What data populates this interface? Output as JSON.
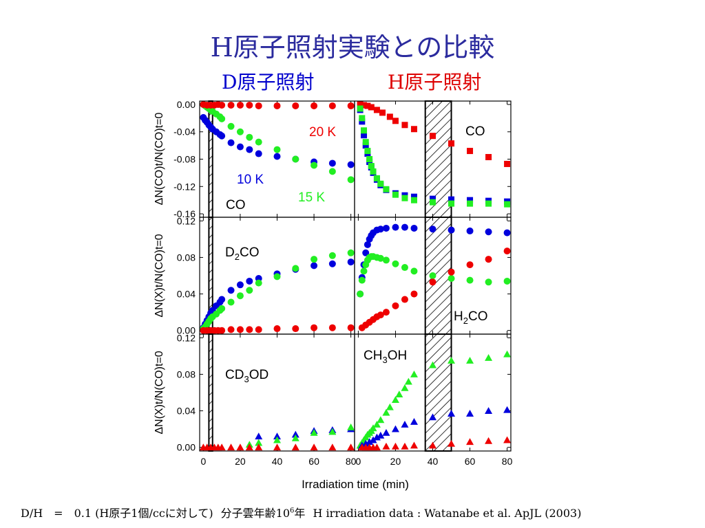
{
  "slide": {
    "title": "H原子照射実験との比較",
    "subtitle_left": "D原子照射",
    "subtitle_right": "H原子照射",
    "footer": {
      "ratio": "D/H　=　0.1 (H原子1個/ccに対して)",
      "age_prefix": "分子雲年齢10",
      "age_sup": "6",
      "age_suffix": "年",
      "source": "H irradiation data : Watanabe et al. ApJL (2003)"
    }
  },
  "colors": {
    "d10K": "#0000dd",
    "d15K": "#22ee22",
    "d20K": "#ee0000",
    "title": "#2b2b9e"
  },
  "chart_data": {
    "type": "scatter",
    "xlabel": "Irradiation time (min)",
    "xlim": [
      -2,
      82
    ],
    "xticks": [
      0,
      20,
      40,
      60,
      80
    ],
    "hatched_interval": [
      36,
      50
    ],
    "left_hatched_interval": [
      3,
      5
    ],
    "panels": [
      {
        "id": "d-co",
        "label": "CO",
        "ylabel": "ΔN(CO)t/N(CO)t=0",
        "ylim": [
          -0.165,
          0.005
        ],
        "yticks": [
          "0.00",
          "-0.04",
          "-0.08",
          "-0.12",
          "-0.16"
        ],
        "ytick_values": [
          0,
          -0.04,
          -0.08,
          -0.12,
          -0.16
        ],
        "marker": "circle",
        "temp_labels": [
          "10 K",
          "15 K",
          "20 K"
        ],
        "series": [
          {
            "name": "10 K",
            "x": [
              0,
              1,
              2,
              3,
              4,
              5,
              7,
              9,
              10,
              15,
              20,
              25,
              30,
              40,
              50,
              60,
              70,
              80
            ],
            "y": [
              -0.019,
              -0.023,
              -0.026,
              -0.03,
              -0.033,
              -0.036,
              -0.04,
              -0.044,
              -0.046,
              -0.056,
              -0.062,
              -0.066,
              -0.072,
              -0.076,
              -0.08,
              -0.084,
              -0.086,
              -0.088
            ]
          },
          {
            "name": "15 K",
            "x": [
              0,
              1,
              2,
              3,
              4,
              5,
              7,
              9,
              10,
              15,
              20,
              25,
              30,
              40,
              50,
              60,
              70,
              80
            ],
            "y": [
              0.0,
              -0.002,
              -0.004,
              -0.006,
              -0.008,
              -0.01,
              -0.014,
              -0.018,
              -0.021,
              -0.032,
              -0.04,
              -0.048,
              -0.055,
              -0.066,
              -0.08,
              -0.089,
              -0.098,
              -0.11
            ]
          },
          {
            "name": "20 K",
            "x": [
              0,
              2,
              4,
              6,
              8,
              10,
              15,
              20,
              25,
              30,
              40,
              50,
              60,
              70,
              80
            ],
            "y": [
              0.0,
              -0.001,
              -0.001,
              -0.001,
              0.0,
              -0.001,
              -0.001,
              -0.001,
              -0.001,
              -0.002,
              -0.002,
              -0.002,
              -0.002,
              -0.002,
              -0.002
            ]
          }
        ]
      },
      {
        "id": "h-co",
        "label": "CO",
        "marker": "square",
        "series": [
          {
            "name": "20 K",
            "x": [
              1,
              3,
              5,
              7,
              10,
              13,
              17,
              20,
              25,
              30,
              40,
              50,
              60,
              70,
              80
            ],
            "y": [
              0.0,
              -0.001,
              -0.002,
              -0.004,
              -0.008,
              -0.012,
              -0.018,
              -0.024,
              -0.03,
              -0.036,
              -0.046,
              -0.057,
              -0.068,
              -0.077,
              -0.087
            ]
          },
          {
            "name": "10 K",
            "x": [
              1,
              2,
              3,
              4,
              5,
              6,
              7,
              8,
              10,
              12,
              15,
              20,
              25,
              30,
              40,
              50,
              60,
              70,
              80
            ],
            "y": [
              -0.008,
              -0.025,
              -0.045,
              -0.06,
              -0.072,
              -0.084,
              -0.092,
              -0.1,
              -0.11,
              -0.118,
              -0.125,
              -0.13,
              -0.133,
              -0.135,
              -0.138,
              -0.139,
              -0.14,
              -0.141,
              -0.142
            ]
          },
          {
            "name": "15 K",
            "x": [
              1,
              2,
              3,
              4,
              5,
              6,
              7,
              8,
              10,
              12,
              15,
              20,
              25,
              30,
              40,
              50,
              60,
              70,
              80
            ],
            "y": [
              -0.006,
              -0.02,
              -0.038,
              -0.055,
              -0.068,
              -0.08,
              -0.09,
              -0.098,
              -0.108,
              -0.116,
              -0.124,
              -0.132,
              -0.137,
              -0.14,
              -0.143,
              -0.145,
              -0.145,
              -0.145,
              -0.146
            ]
          }
        ]
      },
      {
        "id": "d-x",
        "label": "D2CO",
        "ylabel": "ΔN(X)t/N(CO)t=0",
        "ylim": [
          -0.004,
          0.124
        ],
        "yticks": [
          "0.12",
          "0.08",
          "0.04",
          "0.00"
        ],
        "ytick_values": [
          0.12,
          0.08,
          0.04,
          0
        ],
        "marker": "circle",
        "series": [
          {
            "name": "10 K",
            "x": [
              0,
              1,
              2,
              3,
              4,
              5,
              7,
              9,
              10,
              15,
              20,
              25,
              30,
              40,
              50,
              60,
              70,
              80
            ],
            "y": [
              0.003,
              0.007,
              0.011,
              0.015,
              0.019,
              0.022,
              0.027,
              0.031,
              0.034,
              0.044,
              0.05,
              0.054,
              0.057,
              0.062,
              0.067,
              0.071,
              0.073,
              0.075
            ]
          },
          {
            "name": "15 K",
            "x": [
              0,
              1,
              2,
              3,
              4,
              5,
              7,
              9,
              10,
              15,
              20,
              25,
              30,
              40,
              50,
              60,
              70,
              80
            ],
            "y": [
              0.002,
              0.004,
              0.007,
              0.01,
              0.013,
              0.015,
              0.018,
              0.022,
              0.024,
              0.031,
              0.038,
              0.044,
              0.052,
              0.059,
              0.068,
              0.078,
              0.082,
              0.085
            ]
          },
          {
            "name": "20 K",
            "x": [
              0,
              2,
              4,
              6,
              8,
              10,
              15,
              20,
              25,
              30,
              40,
              50,
              60,
              70,
              80
            ],
            "y": [
              0.0,
              0.0,
              0.0,
              0.0,
              0.0,
              0.0,
              0.001,
              0.001,
              0.001,
              0.001,
              0.002,
              0.002,
              0.003,
              0.003,
              0.003
            ]
          }
        ]
      },
      {
        "id": "h-x",
        "label": "H2CO",
        "marker": "circle",
        "series": [
          {
            "name": "10 K",
            "x": [
              1,
              2,
              3,
              4,
              5,
              6,
              7,
              8,
              10,
              12,
              15,
              20,
              25,
              30,
              40,
              50,
              60,
              70,
              80
            ],
            "y": [
              0.04,
              0.058,
              0.072,
              0.085,
              0.094,
              0.1,
              0.104,
              0.107,
              0.11,
              0.111,
              0.112,
              0.113,
              0.113,
              0.112,
              0.111,
              0.11,
              0.109,
              0.108,
              0.107
            ]
          },
          {
            "name": "15 K",
            "x": [
              1,
              2,
              3,
              4,
              5,
              6,
              7,
              8,
              10,
              12,
              15,
              20,
              25,
              30,
              40,
              50,
              60,
              70,
              80
            ],
            "y": [
              0.04,
              0.055,
              0.065,
              0.072,
              0.077,
              0.08,
              0.081,
              0.081,
              0.08,
              0.079,
              0.077,
              0.073,
              0.069,
              0.065,
              0.06,
              0.057,
              0.055,
              0.053,
              0.054
            ]
          },
          {
            "name": "20 K",
            "x": [
              2,
              4,
              6,
              8,
              10,
              12,
              15,
              20,
              25,
              30,
              40,
              50,
              60,
              70,
              80
            ],
            "y": [
              0.003,
              0.006,
              0.009,
              0.012,
              0.015,
              0.017,
              0.02,
              0.027,
              0.034,
              0.04,
              0.053,
              0.064,
              0.072,
              0.078,
              0.087
            ]
          }
        ]
      },
      {
        "id": "d-y",
        "label": "CD3OD",
        "ylabel": "ΔN(X)t/N(CO)t=0",
        "ylim": [
          -0.004,
          0.124
        ],
        "yticks": [
          "0.12",
          "0.08",
          "0.04",
          "0.00"
        ],
        "ytick_values": [
          0.12,
          0.08,
          0.04,
          0
        ],
        "marker": "triangle",
        "series": [
          {
            "name": "10 K",
            "x": [
              30,
              40,
              50,
              60,
              70,
              80
            ],
            "y": [
              0.012,
              0.012,
              0.014,
              0.018,
              0.019,
              0.02
            ]
          },
          {
            "name": "15 K",
            "x": [
              25,
              30,
              40,
              50,
              60,
              70,
              80
            ],
            "y": [
              0.003,
              0.005,
              0.008,
              0.01,
              0.016,
              0.017,
              0.022
            ]
          },
          {
            "name": "20 K",
            "x": [
              0,
              2,
              4,
              6,
              8,
              10,
              15,
              20,
              25,
              30,
              40,
              50,
              60,
              70,
              80
            ],
            "y": [
              0.0,
              0.0,
              0.0,
              0.0,
              0.0,
              0.0,
              0.0,
              0.0,
              0.0,
              0.0,
              0.0,
              0.0,
              0.0,
              0.0,
              0.0
            ]
          }
        ]
      },
      {
        "id": "h-y",
        "label": "CH3OH",
        "marker": "triangle",
        "series": [
          {
            "name": "15 K",
            "x": [
              1,
              2,
              3,
              4,
              5,
              6,
              7,
              8,
              10,
              12,
              15,
              17,
              20,
              22,
              25,
              27,
              30,
              40,
              50,
              60,
              70,
              80
            ],
            "y": [
              0.002,
              0.005,
              0.008,
              0.011,
              0.014,
              0.016,
              0.018,
              0.021,
              0.025,
              0.03,
              0.038,
              0.044,
              0.052,
              0.058,
              0.065,
              0.072,
              0.08,
              0.09,
              0.095,
              0.095,
              0.098,
              0.102
            ]
          },
          {
            "name": "10 K",
            "x": [
              2,
              4,
              6,
              8,
              10,
              12,
              15,
              20,
              25,
              30,
              40,
              50,
              60,
              70,
              80
            ],
            "y": [
              0.002,
              0.004,
              0.006,
              0.008,
              0.011,
              0.013,
              0.016,
              0.02,
              0.025,
              0.028,
              0.033,
              0.037,
              0.037,
              0.04,
              0.041
            ]
          },
          {
            "name": "20 K",
            "x": [
              2,
              4,
              6,
              8,
              10,
              15,
              20,
              25,
              30,
              40,
              50,
              60,
              70,
              80
            ],
            "y": [
              0.0,
              0.0,
              0.0,
              0.0,
              0.0,
              0.001,
              0.001,
              0.001,
              0.002,
              0.002,
              0.004,
              0.006,
              0.007,
              0.008
            ]
          }
        ]
      }
    ]
  }
}
